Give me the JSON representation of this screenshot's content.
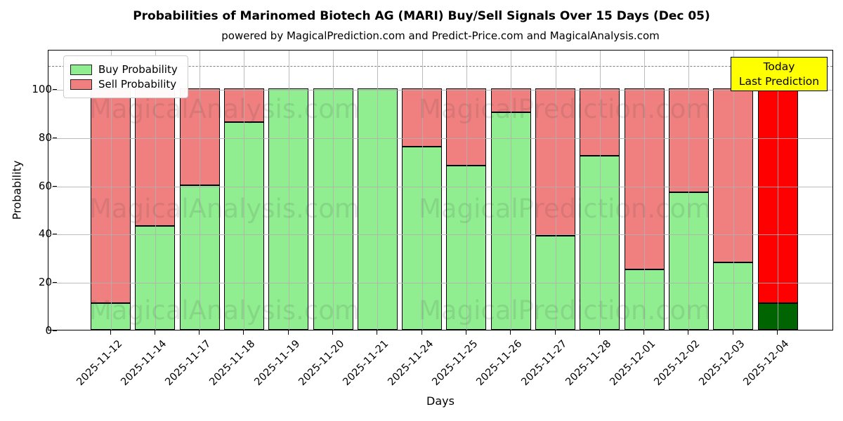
{
  "title": "Probabilities of Marinomed Biotech AG (MARI) Buy/Sell Signals Over 15 Days (Dec 05)",
  "subtitle": "powered by MagicalPrediction.com and Predict-Price.com and MagicalAnalysis.com",
  "legend": [
    {
      "label": "Buy Probability",
      "color": "#90ee90"
    },
    {
      "label": "Sell Probability",
      "color": "#f08080"
    }
  ],
  "annotation_box": {
    "line1": "Today",
    "line2": "Last Prediction",
    "bg_color": "#ffff00"
  },
  "watermarks": {
    "left_text": "MagicalAnalysis.com",
    "right_text": "MagicalPrediction.com"
  },
  "colors": {
    "buy": "#90ee90",
    "sell": "#f08080",
    "today_buy": "#006400",
    "today_sell": "#ff0000",
    "grid": "#b0b0b0",
    "dashed_line": "#808080",
    "bar_edge": "#000000"
  },
  "chart_data": {
    "type": "bar",
    "stacked": true,
    "title": "Probabilities of Marinomed Biotech AG (MARI) Buy/Sell Signals Over 15 Days (Dec 05)",
    "xlabel": "Days",
    "ylabel": "Probability",
    "ylim": [
      0,
      116
    ],
    "yticks": [
      0,
      20,
      40,
      60,
      80,
      100
    ],
    "dashed_line_y": 110,
    "grid": true,
    "legend_position": "upper left",
    "categories": [
      "2025-11-12",
      "2025-11-14",
      "2025-11-17",
      "2025-11-18",
      "2025-11-19",
      "2025-11-20",
      "2025-11-21",
      "2025-11-24",
      "2025-11-25",
      "2025-11-26",
      "2025-11-27",
      "2025-11-28",
      "2025-12-01",
      "2025-12-02",
      "2025-12-03",
      "2025-12-04"
    ],
    "series": [
      {
        "name": "Buy Probability",
        "color": "#90ee90",
        "values": [
          11,
          43,
          60,
          86,
          100,
          100,
          100,
          76,
          68,
          90,
          39,
          72,
          25,
          57,
          28,
          11
        ]
      },
      {
        "name": "Sell Probability",
        "color": "#f08080",
        "values": [
          89,
          57,
          40,
          14,
          0,
          0,
          0,
          24,
          32,
          10,
          61,
          28,
          75,
          43,
          72,
          89
        ]
      }
    ],
    "today_index": 15,
    "today_colors": {
      "buy": "#006400",
      "sell": "#ff0000"
    }
  }
}
